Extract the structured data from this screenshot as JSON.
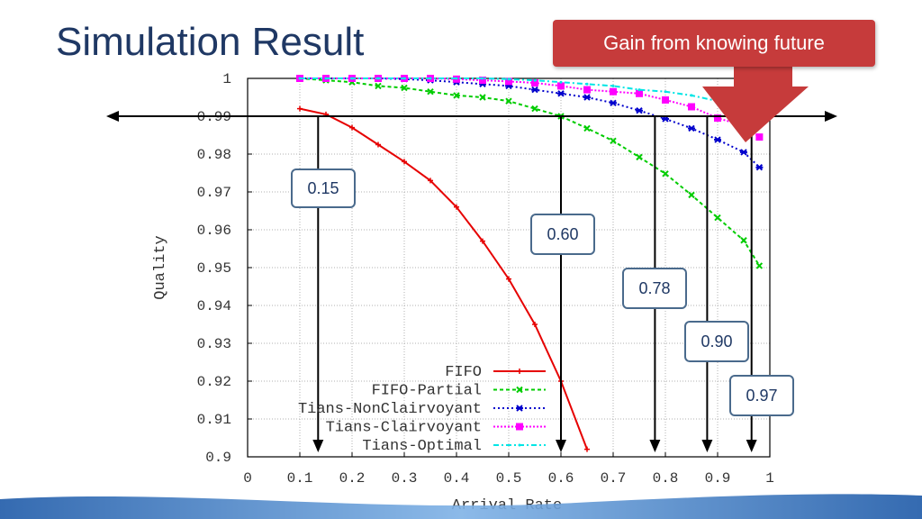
{
  "slide": {
    "title": "Simulation Result"
  },
  "callout": {
    "text": "Gain from knowing future"
  },
  "markers": [
    {
      "label": "0.15",
      "x": 0.135
    },
    {
      "label": "0.60",
      "x": 0.6
    },
    {
      "label": "0.78",
      "x": 0.78
    },
    {
      "label": "0.90",
      "x": 0.88
    },
    {
      "label": "0.97",
      "x": 0.965
    }
  ],
  "chart_data": {
    "type": "line",
    "xlabel": "Arrival Rate",
    "ylabel": "Quality",
    "xlim": [
      0,
      1
    ],
    "ylim": [
      0.9,
      1
    ],
    "xticks": [
      "0",
      "0.1",
      "0.2",
      "0.3",
      "0.4",
      "0.5",
      "0.6",
      "0.7",
      "0.8",
      "0.9",
      "1"
    ],
    "yticks": [
      "0.9",
      "0.91",
      "0.92",
      "0.93",
      "0.94",
      "0.95",
      "0.96",
      "0.97",
      "0.98",
      "0.99",
      "1"
    ],
    "grid": true,
    "legend_position": "bottom-left",
    "threshold": 0.99,
    "series": [
      {
        "name": "FIFO",
        "color": "#e60000",
        "dash": "",
        "marker": "plus",
        "x": [
          0.1,
          0.15,
          0.2,
          0.25,
          0.3,
          0.35,
          0.4,
          0.45,
          0.5,
          0.55,
          0.6,
          0.65
        ],
        "y": [
          0.992,
          0.9905,
          0.987,
          0.9825,
          0.978,
          0.973,
          0.966,
          0.957,
          0.947,
          0.935,
          0.92,
          0.902
        ]
      },
      {
        "name": "FIFO-Partial",
        "color": "#00cc00",
        "dash": "4,3",
        "marker": "x",
        "x": [
          0.1,
          0.15,
          0.2,
          0.25,
          0.3,
          0.35,
          0.4,
          0.45,
          0.5,
          0.55,
          0.6,
          0.65,
          0.7,
          0.75,
          0.8,
          0.85,
          0.9,
          0.95,
          0.98
        ],
        "y": [
          1.0,
          0.9995,
          0.999,
          0.998,
          0.9975,
          0.9965,
          0.9955,
          0.995,
          0.994,
          0.992,
          0.99,
          0.9868,
          0.9835,
          0.9792,
          0.9748,
          0.9692,
          0.9632,
          0.9572,
          0.9505
        ]
      },
      {
        "name": "Tians-NonClairvoyant",
        "color": "#0000cc",
        "dash": "2,3",
        "marker": "star",
        "x": [
          0.1,
          0.15,
          0.2,
          0.25,
          0.3,
          0.35,
          0.4,
          0.45,
          0.5,
          0.55,
          0.6,
          0.65,
          0.7,
          0.75,
          0.8,
          0.85,
          0.9,
          0.95,
          0.98
        ],
        "y": [
          1.0,
          1.0,
          1.0,
          1.0,
          0.9998,
          0.9995,
          0.999,
          0.9985,
          0.998,
          0.997,
          0.996,
          0.995,
          0.9935,
          0.9915,
          0.9893,
          0.9868,
          0.9838,
          0.9805,
          0.9765
        ]
      },
      {
        "name": "Tians-Clairvoyant",
        "color": "#ff00ff",
        "dash": "2,2",
        "marker": "square",
        "x": [
          0.1,
          0.15,
          0.2,
          0.25,
          0.3,
          0.35,
          0.4,
          0.45,
          0.5,
          0.55,
          0.6,
          0.65,
          0.7,
          0.75,
          0.8,
          0.85,
          0.9,
          0.95,
          0.98
        ],
        "y": [
          1.0,
          1.0,
          1.0,
          1.0,
          1.0,
          1.0,
          0.9998,
          0.9995,
          0.9992,
          0.9988,
          0.998,
          0.997,
          0.9965,
          0.996,
          0.9943,
          0.9925,
          0.9895,
          0.9875,
          0.9845
        ]
      },
      {
        "name": "Tians-Optimal",
        "color": "#00e5e5",
        "dash": "6,3,2,3",
        "marker": "none",
        "x": [
          0.1,
          0.15,
          0.2,
          0.25,
          0.3,
          0.35,
          0.4,
          0.45,
          0.5,
          0.55,
          0.6,
          0.65,
          0.7,
          0.75,
          0.8,
          0.85,
          0.9,
          0.95,
          0.98
        ],
        "y": [
          1.0,
          1.0,
          1.0,
          1.0,
          1.0,
          1.0,
          1.0,
          1.0,
          0.9998,
          0.9995,
          0.999,
          0.9985,
          0.998,
          0.997,
          0.9965,
          0.9955,
          0.994,
          0.992,
          0.99
        ]
      }
    ]
  }
}
